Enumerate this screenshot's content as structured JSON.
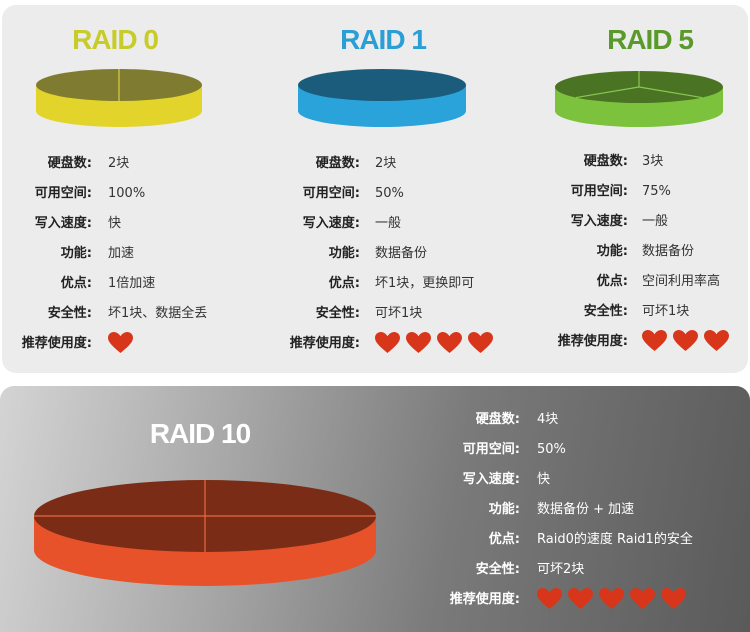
{
  "labels": [
    "硬盘数:",
    "可用空间:",
    "写入速度:",
    "功能:",
    "优点:",
    "安全性:",
    "推荐使用度:"
  ],
  "heart_color": "#d7361a",
  "raids": [
    {
      "title": "RAID 0",
      "title_color": "#c8cc2a",
      "top_color": "#7f7b30",
      "side_color": "#e2d42a",
      "divider_color": "#d8d040",
      "values": [
        "2块",
        "100%",
        "快",
        "加速",
        "1倍加速",
        "坏1块、数据全丢"
      ],
      "rating": 1
    },
    {
      "title": "RAID 1",
      "title_color": "#2a9fd6",
      "top_color": "#1b5c7c",
      "side_color": "#2aa2da",
      "divider_color": "#3aa8dc",
      "values": [
        "2块",
        "50%",
        "一般",
        "数据备份",
        "坏1块，更换即可",
        "可坏1块"
      ],
      "rating": 4
    },
    {
      "title": "RAID 5",
      "title_color": "#5a9a2a",
      "top_color": "#4a7424",
      "side_color": "#7cc23c",
      "divider_color": "#88c850",
      "values": [
        "3块",
        "75%",
        "一般",
        "数据备份",
        "空间利用率高",
        "可坏1块"
      ],
      "rating": 3
    },
    {
      "title": "RAID 10",
      "title_color": "#ffffff",
      "top_color": "#7a2c16",
      "side_color": "#e8522a",
      "divider_color": "#e86a40",
      "values": [
        "4块",
        "50%",
        "快",
        "数据备份 + 加速",
        "Raid0的速度 Raid1的安全",
        "可坏2块"
      ],
      "rating": 5
    }
  ]
}
